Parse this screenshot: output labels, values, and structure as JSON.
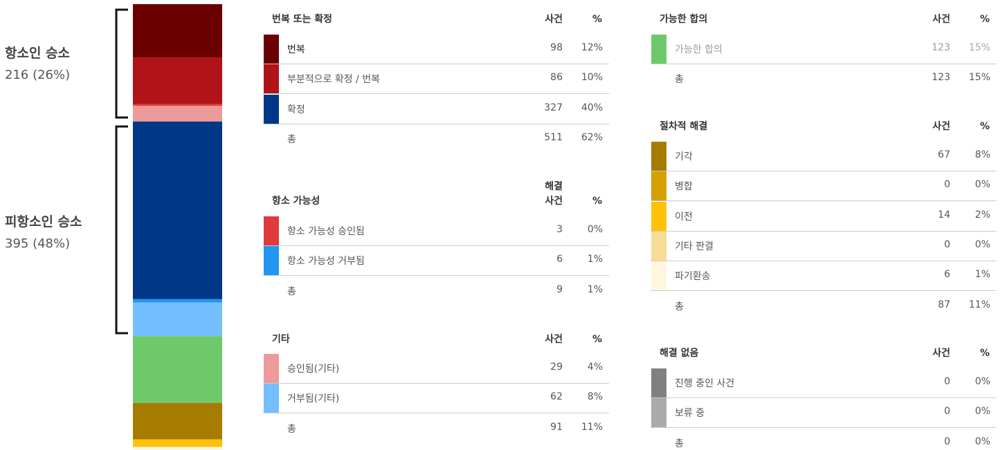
{
  "groups": [
    {
      "title": "항소인 승소",
      "value": "216 (26%)"
    },
    {
      "title": "피항소인 승소",
      "value": "395 (48%)"
    }
  ],
  "tables": [
    {
      "title": "번복 또는 확정",
      "col_count": "사건",
      "col_pct": "%",
      "rows": [
        {
          "label": "번복",
          "count": 98,
          "pct": "12%",
          "color": "#6b0000"
        },
        {
          "label": "부분적으로 확정 / 번복",
          "count": 86,
          "pct": "10%",
          "color": "#b01318"
        },
        {
          "label": "확정",
          "count": 327,
          "pct": "40%",
          "color": "#003887"
        }
      ],
      "total": {
        "label": "총",
        "count": 511,
        "pct": "62%"
      }
    },
    {
      "title": "항소 가능성",
      "col_count": "해결\n사건",
      "col_pct": "%",
      "rows": [
        {
          "label": "항소 가능성 승인됨",
          "count": 3,
          "pct": "0%",
          "color": "#e03a3e"
        },
        {
          "label": "항소 가능성 거부됨",
          "count": 6,
          "pct": "1%",
          "color": "#2196f3"
        }
      ],
      "total": {
        "label": "총",
        "count": 9,
        "pct": "1%"
      }
    },
    {
      "title": "기타",
      "col_count": "사건",
      "col_pct": "%",
      "rows": [
        {
          "label": "승인됨(기타)",
          "count": 29,
          "pct": "4%",
          "color": "#ee9a9a"
        },
        {
          "label": "거부됨(기타)",
          "count": 62,
          "pct": "8%",
          "color": "#73bfff"
        }
      ],
      "total": {
        "label": "총",
        "count": 91,
        "pct": "11%"
      }
    },
    {
      "title": "가능한 합의",
      "col_count": "사건",
      "col_pct": "%",
      "rows": [
        {
          "label": "가능한 합의",
          "count": 123,
          "pct": "15%",
          "color": "#6dc96a"
        }
      ],
      "total": {
        "label": "총",
        "count": 123,
        "pct": "15%"
      }
    },
    {
      "title": "절차적 해결",
      "col_count": "사건",
      "col_pct": "%",
      "rows": [
        {
          "label": "기각",
          "count": 67,
          "pct": "8%",
          "color": "#a67c00"
        },
        {
          "label": "병합",
          "count": 0,
          "pct": "0%",
          "color": "#d4a000"
        },
        {
          "label": "이전",
          "count": 14,
          "pct": "2%",
          "color": "#ffc107"
        },
        {
          "label": "기타 판결",
          "count": 0,
          "pct": "0%",
          "color": "#f7dc96"
        },
        {
          "label": "파기환송",
          "count": 6,
          "pct": "1%",
          "color": "#fff6dd"
        }
      ],
      "total": {
        "label": "총",
        "count": 87,
        "pct": "11%"
      }
    },
    {
      "title": "해결 없음",
      "col_count": "사건",
      "col_pct": "%",
      "rows": [
        {
          "label": "진행 중인 사건",
          "count": 0,
          "pct": "0%",
          "color": "#808080"
        },
        {
          "label": "보류 중",
          "count": 0,
          "pct": "0%",
          "color": "#aaaaaa"
        }
      ],
      "total": {
        "label": "총",
        "count": 0,
        "pct": "0%"
      }
    }
  ]
}
